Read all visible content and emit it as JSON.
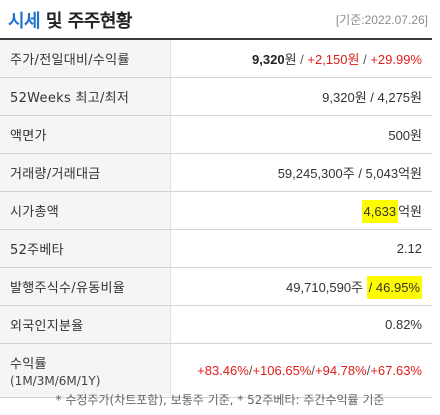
{
  "header": {
    "title_accent": "시세",
    "title_rest": "및 주주현황",
    "date": "[기준:2022.07.26]"
  },
  "rows": [
    {
      "label": "주가/전일대비/수익률",
      "price": "9,320",
      "unit": "원",
      "sep": " / ",
      "change": "+2,150원",
      "sep2": " / ",
      "rate": "+29.99%"
    },
    {
      "label": "52Weeks 최고/최저",
      "value": "9,320원 / 4,275원"
    },
    {
      "label": "액면가",
      "value": "500원"
    },
    {
      "label": "거래량/거래대금",
      "value": "59,245,300주 / 5,043억원"
    },
    {
      "label": "시가총액",
      "value_hl": "4,633",
      "value_suffix": "억원"
    },
    {
      "label": "52주베타",
      "value": "2.12"
    },
    {
      "label": "발행주식수/유동비율",
      "value_prefix": "49,710,590주 ",
      "value_hl": "/ 46.95%"
    },
    {
      "label": "외국인지분율",
      "value": "0.82%"
    },
    {
      "label": "수익률",
      "sublabel": "(1M/3M/6M/1Y)",
      "values": [
        "+83.46%",
        "+106.65%",
        "+94.78%",
        "+67.63%"
      ],
      "sep": "/"
    }
  ],
  "footer": "* 수정주가(차트포함), 보통주 기준, * 52주베타: 주간수익률 기준",
  "colors": {
    "accent": "#1f73c9",
    "up": "#e0201c",
    "highlight": "#fffc00"
  }
}
